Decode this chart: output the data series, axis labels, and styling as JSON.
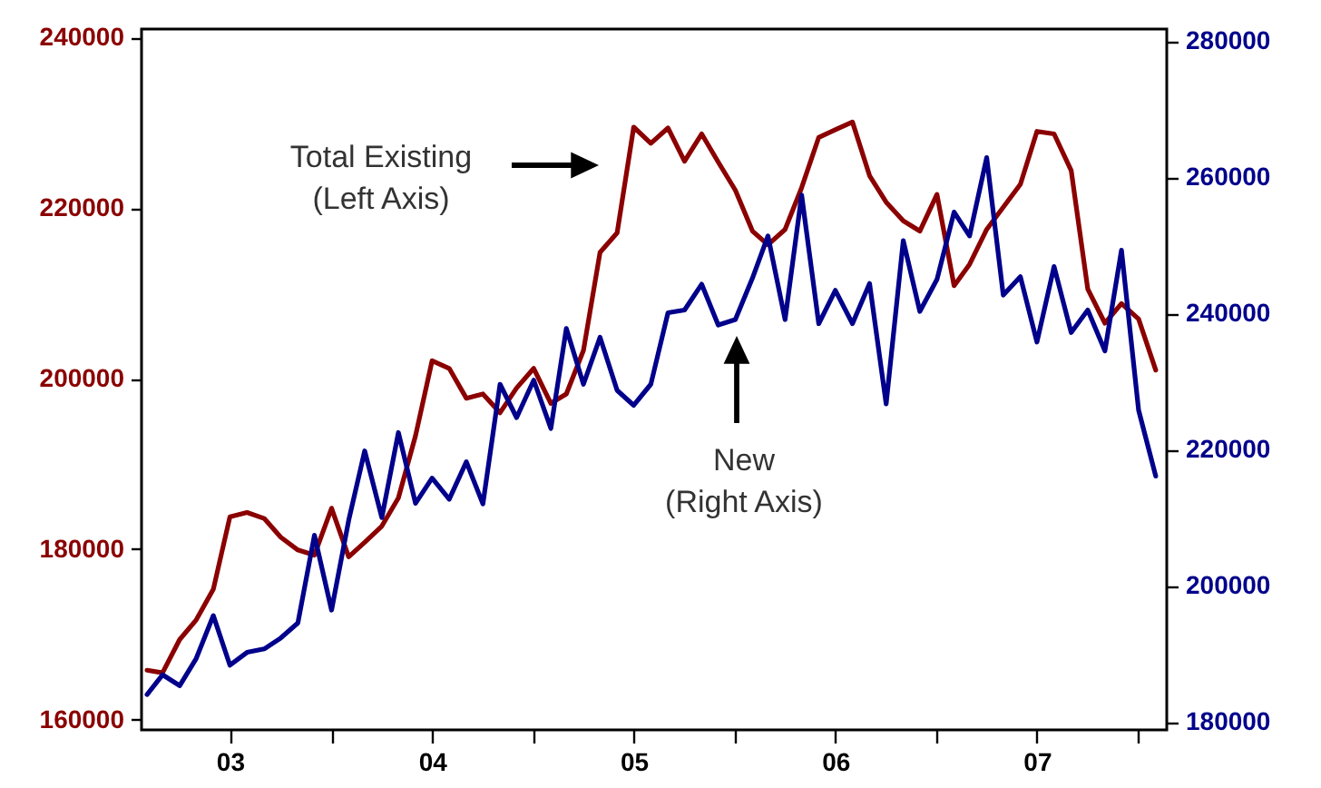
{
  "chart_data": {
    "type": "line",
    "x": [
      "2003-02",
      "2003-03",
      "2003-04",
      "2003-05",
      "2003-06",
      "2003-07",
      "2003-08",
      "2003-09",
      "2003-10",
      "2003-11",
      "2003-12",
      "2004-01",
      "2004-02",
      "2004-03",
      "2004-04",
      "2004-05",
      "2004-06",
      "2004-07",
      "2004-08",
      "2004-09",
      "2004-10",
      "2004-11",
      "2004-12",
      "2005-01",
      "2005-02",
      "2005-03",
      "2005-04",
      "2005-05",
      "2005-06",
      "2005-07",
      "2005-08",
      "2005-09",
      "2005-10",
      "2005-11",
      "2005-12",
      "2006-01",
      "2006-02",
      "2006-03",
      "2006-04",
      "2006-05",
      "2006-06",
      "2006-07",
      "2006-08",
      "2006-09",
      "2006-10",
      "2006-11",
      "2006-12",
      "2007-01",
      "2007-02",
      "2007-03",
      "2007-04",
      "2007-05",
      "2007-06",
      "2007-07",
      "2007-08",
      "2007-09",
      "2007-10",
      "2007-11",
      "2007-12",
      "2008-01",
      "2008-02"
    ],
    "series": [
      {
        "color": "#8b0000",
        "values": [
          165800,
          165500,
          169400,
          171700,
          175300,
          183800,
          184300,
          183600,
          181400,
          179900,
          179300,
          184800,
          179100,
          180800,
          182700,
          186000,
          193300,
          202100,
          201200,
          197700,
          198200,
          196000,
          198900,
          201200,
          197100,
          198200,
          203300,
          214800,
          217100,
          229500,
          227600,
          229400,
          225500,
          228700,
          225400,
          222100,
          217300,
          215700,
          217500,
          222400,
          228300,
          229200,
          230100,
          223800,
          220700,
          218500,
          217300,
          221600,
          210900,
          213400,
          217500,
          220100,
          222800,
          229000,
          228700,
          224400,
          210500,
          206500,
          208800,
          207000,
          201000
        ]
      },
      {
        "color": "#00008b",
        "axis": "y2",
        "values": [
          184000,
          186900,
          185300,
          189300,
          195600,
          188300,
          190200,
          190700,
          192300,
          194500,
          207400,
          196400,
          209600,
          219800,
          210000,
          222500,
          212100,
          215800,
          212700,
          218200,
          212000,
          229600,
          224700,
          230200,
          223100,
          237800,
          229600,
          236500,
          228700,
          226500,
          229600,
          240100,
          240500,
          244300,
          238300,
          239100,
          245200,
          251400,
          239100,
          257400,
          238500,
          243400,
          238500,
          244400,
          226700,
          250700,
          240300,
          245000,
          254900,
          251400,
          262900,
          242700,
          245400,
          235800,
          246900,
          237200,
          240500,
          234500,
          249300,
          225800,
          216100
        ]
      }
    ],
    "xlim": [
      "2003-01-22",
      "2008-02-21"
    ],
    "xticks": [
      {
        "value": "2003-07-01",
        "label": "03"
      },
      {
        "value": "2004-01-01",
        "label": null
      },
      {
        "value": "2004-07-01",
        "label": "04"
      },
      {
        "value": "2005-01-01",
        "label": null
      },
      {
        "value": "2005-07-01",
        "label": "05"
      },
      {
        "value": "2006-01-01",
        "label": null
      },
      {
        "value": "2006-07-01",
        "label": "06"
      },
      {
        "value": "2007-01-01",
        "label": null
      },
      {
        "value": "2007-07-01",
        "label": "07"
      },
      {
        "value": "2008-01-01",
        "label": null
      }
    ],
    "ylim": [
      158800,
      241000
    ],
    "yticks": [
      160000,
      180000,
      200000,
      220000,
      240000
    ],
    "y2lim": [
      178800,
      281800
    ],
    "y2ticks": [
      180000,
      200000,
      220000,
      240000,
      260000,
      280000
    ],
    "annotations": [
      "Total Existing\n(Left Axis)",
      "New\n(Right Axis)"
    ]
  }
}
